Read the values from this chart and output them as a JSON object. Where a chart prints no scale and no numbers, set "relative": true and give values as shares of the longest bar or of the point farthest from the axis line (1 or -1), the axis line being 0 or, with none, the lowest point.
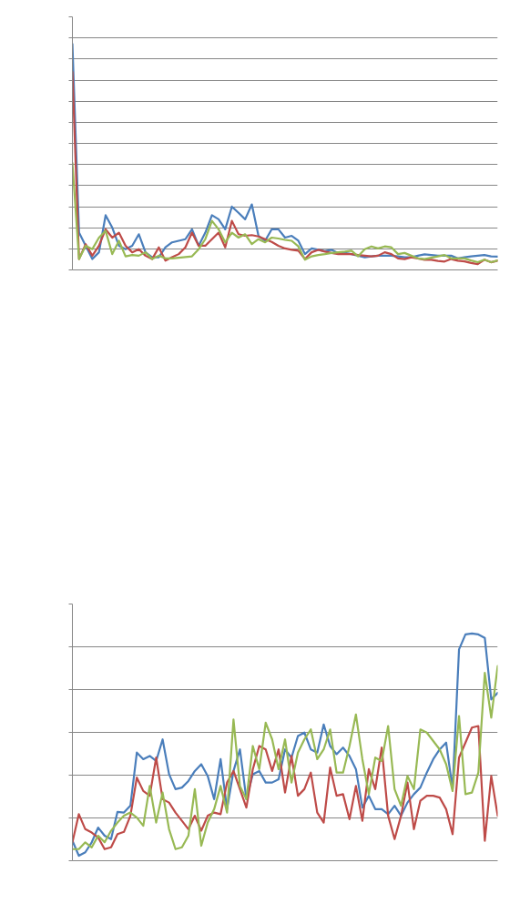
{
  "chart_data": [
    {
      "type": "line",
      "relative": true,
      "grid": "y",
      "line_style": "solid",
      "marker": "none",
      "tick_labels": false,
      "categories": [
        null,
        null,
        null,
        null,
        null,
        null,
        null,
        null,
        null,
        null,
        null,
        null,
        null,
        null,
        null,
        null,
        null,
        null,
        null,
        null,
        null,
        null,
        null,
        null,
        null,
        null,
        null,
        null,
        null,
        null,
        null,
        null,
        null,
        null,
        null,
        null,
        null,
        null,
        null,
        null,
        null,
        null,
        null,
        null,
        null,
        null,
        null,
        null,
        null,
        null,
        null,
        null,
        null,
        null,
        null,
        null,
        null,
        null,
        null,
        null,
        null,
        null,
        null,
        null,
        null
      ],
      "series": [
        {
          "color": "#4a7ebb",
          "values": [
            1.0,
            0.165,
            0.107,
            0.048,
            0.078,
            0.242,
            0.187,
            0.107,
            0.092,
            0.107,
            0.158,
            0.078,
            0.056,
            0.056,
            0.1,
            0.122,
            0.129,
            0.136,
            0.18,
            0.107,
            0.165,
            0.242,
            0.224,
            0.18,
            0.28,
            0.253,
            0.224,
            0.29,
            0.151,
            0.129,
            0.18,
            0.18,
            0.143,
            0.151,
            0.129,
            0.07,
            0.095,
            0.089,
            0.083,
            0.089,
            0.075,
            0.075,
            0.07,
            0.063,
            0.056,
            0.06,
            0.063,
            0.063,
            0.063,
            0.06,
            0.056,
            0.056,
            0.063,
            0.069,
            0.066,
            0.063,
            0.063,
            0.063,
            0.051,
            0.056,
            0.06,
            0.063,
            0.066,
            0.06,
            0.059
          ]
        },
        {
          "color": "#be4b48",
          "values": [
            0.876,
            0.048,
            0.114,
            0.063,
            0.107,
            0.18,
            0.143,
            0.165,
            0.107,
            0.078,
            0.092,
            0.063,
            0.048,
            0.1,
            0.041,
            0.056,
            0.07,
            0.1,
            0.165,
            0.107,
            0.107,
            0.136,
            0.165,
            0.1,
            0.217,
            0.158,
            0.151,
            0.154,
            0.148,
            0.136,
            0.124,
            0.107,
            0.095,
            0.089,
            0.085,
            0.048,
            0.078,
            0.089,
            0.081,
            0.075,
            0.07,
            0.07,
            0.07,
            0.066,
            0.063,
            0.06,
            0.063,
            0.078,
            0.07,
            0.051,
            0.048,
            0.056,
            0.051,
            0.045,
            0.045,
            0.04,
            0.037,
            0.048,
            0.041,
            0.038,
            0.031,
            0.026,
            0.045,
            0.034,
            0.041
          ]
        },
        {
          "color": "#98b954",
          "values": [
            0.473,
            0.048,
            0.107,
            0.092,
            0.143,
            0.173,
            0.07,
            0.129,
            0.06,
            0.066,
            0.063,
            0.078,
            0.048,
            0.063,
            0.051,
            0.051,
            0.054,
            0.057,
            0.06,
            0.092,
            0.136,
            0.217,
            0.18,
            0.122,
            0.165,
            0.143,
            0.158,
            0.114,
            0.136,
            0.122,
            0.143,
            0.139,
            0.133,
            0.129,
            0.104,
            0.045,
            0.06,
            0.066,
            0.07,
            0.075,
            0.078,
            0.081,
            0.085,
            0.06,
            0.092,
            0.104,
            0.095,
            0.104,
            0.1,
            0.07,
            0.075,
            0.063,
            0.051,
            0.048,
            0.054,
            0.06,
            0.066,
            0.051,
            0.051,
            0.051,
            0.042,
            0.034,
            0.045,
            0.034,
            0.042
          ]
        }
      ]
    },
    {
      "type": "line",
      "relative": true,
      "grid": "y",
      "line_style": "solid",
      "marker": "none",
      "tick_labels": false,
      "categories": [
        null,
        null,
        null,
        null,
        null,
        null,
        null,
        null,
        null,
        null,
        null,
        null,
        null,
        null,
        null,
        null,
        null,
        null,
        null,
        null,
        null,
        null,
        null,
        null,
        null,
        null,
        null,
        null,
        null,
        null,
        null,
        null,
        null,
        null,
        null,
        null,
        null,
        null,
        null,
        null,
        null,
        null,
        null,
        null,
        null,
        null,
        null,
        null,
        null,
        null,
        null,
        null,
        null,
        null,
        null,
        null,
        null,
        null,
        null,
        null,
        null,
        null,
        null,
        null,
        null,
        null,
        null
      ],
      "series": [
        {
          "color": "#4a7ebb",
          "values": [
            0.088,
            0.022,
            0.037,
            0.081,
            0.146,
            0.11,
            0.095,
            0.215,
            0.212,
            0.242,
            0.476,
            0.447,
            0.461,
            0.439,
            0.534,
            0.381,
            0.315,
            0.322,
            0.351,
            0.395,
            0.425,
            0.373,
            0.271,
            0.447,
            0.227,
            0.395,
            0.49,
            0.271,
            0.381,
            0.395,
            0.344,
            0.344,
            0.359,
            0.49,
            0.454,
            0.549,
            0.564,
            0.49,
            0.476,
            0.6,
            0.505,
            0.469,
            0.498,
            0.461,
            0.403,
            0.234,
            0.286,
            0.227,
            0.227,
            0.205,
            0.242,
            0.198,
            0.256,
            0.293,
            0.322,
            0.388,
            0.447,
            0.49,
            0.52,
            0.315,
            0.93,
            0.996,
            1.0,
            0.996,
            0.981,
            0.71,
            0.739
          ]
        },
        {
          "color": "#be4b48",
          "values": [
            0.081,
            0.205,
            0.139,
            0.124,
            0.102,
            0.051,
            0.059,
            0.117,
            0.127,
            0.198,
            0.366,
            0.307,
            0.286,
            0.454,
            0.271,
            0.256,
            0.212,
            0.176,
            0.139,
            0.198,
            0.132,
            0.198,
            0.212,
            0.205,
            0.344,
            0.395,
            0.315,
            0.234,
            0.403,
            0.505,
            0.49,
            0.395,
            0.49,
            0.3,
            0.461,
            0.286,
            0.315,
            0.388,
            0.212,
            0.168,
            0.41,
            0.286,
            0.293,
            0.183,
            0.329,
            0.176,
            0.403,
            0.315,
            0.498,
            0.198,
            0.095,
            0.198,
            0.344,
            0.139,
            0.264,
            0.286,
            0.286,
            0.278,
            0.227,
            0.117,
            0.454,
            0.52,
            0.586,
            0.593,
            0.088,
            0.373,
            0.198
          ]
        },
        {
          "color": "#98b954",
          "values": [
            0.051,
            0.051,
            0.081,
            0.059,
            0.11,
            0.081,
            0.132,
            0.168,
            0.198,
            0.212,
            0.19,
            0.154,
            0.329,
            0.168,
            0.3,
            0.139,
            0.051,
            0.059,
            0.11,
            0.315,
            0.066,
            0.168,
            0.227,
            0.329,
            0.212,
            0.622,
            0.329,
            0.271,
            0.505,
            0.403,
            0.608,
            0.534,
            0.403,
            0.534,
            0.344,
            0.476,
            0.534,
            0.578,
            0.447,
            0.49,
            0.578,
            0.388,
            0.388,
            0.505,
            0.644,
            0.447,
            0.293,
            0.454,
            0.439,
            0.593,
            0.315,
            0.242,
            0.373,
            0.315,
            0.578,
            0.564,
            0.527,
            0.49,
            0.425,
            0.307,
            0.637,
            0.293,
            0.3,
            0.388,
            0.827,
            0.63,
            0.857
          ]
        }
      ]
    }
  ]
}
